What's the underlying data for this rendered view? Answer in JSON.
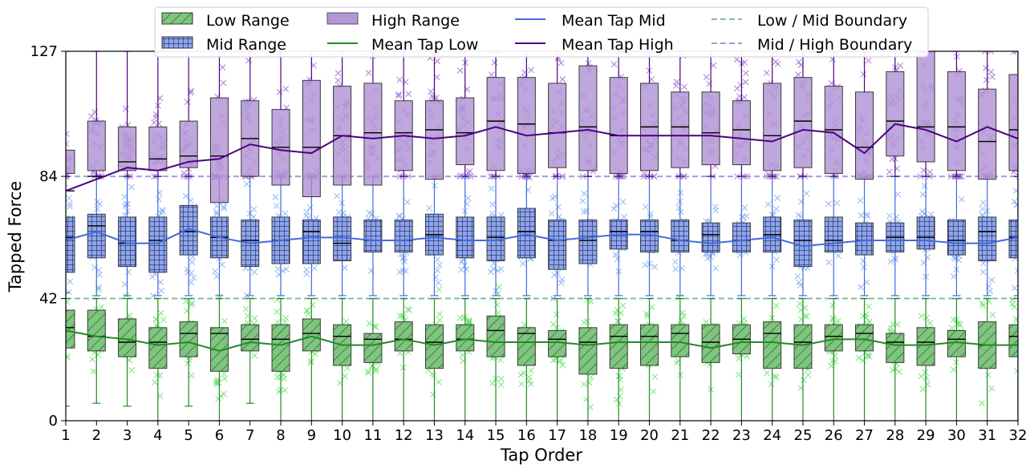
{
  "chart_data": {
    "type": "box",
    "xlabel": "Tap Order",
    "ylabel": "Tapped Force",
    "xlim": [
      1,
      32
    ],
    "ylim": [
      0,
      127
    ],
    "yticks": [
      0,
      42,
      84,
      127
    ],
    "x": [
      1,
      2,
      3,
      4,
      5,
      6,
      7,
      8,
      9,
      10,
      11,
      12,
      13,
      14,
      15,
      16,
      17,
      18,
      19,
      20,
      21,
      22,
      23,
      24,
      25,
      26,
      27,
      28,
      29,
      30,
      31,
      32
    ],
    "legend_position": "top-center",
    "legend": {
      "low_box": "Low Range",
      "mid_box": "Mid Range",
      "high_box": "High Range",
      "low_mean": "Mean Tap Low",
      "mid_mean": "Mean Tap Mid",
      "high_mean": "Mean Tap High",
      "low_mid_boundary": "Low / Mid Boundary",
      "mid_high_boundary": "Mid / High Boundary"
    },
    "boundaries": {
      "low_mid": 42,
      "mid_high": 84
    },
    "colors": {
      "low_fill": "#7fc47f",
      "low_line": "#228b22",
      "low_scatter": "#5fe05f",
      "mid_fill": "#8fa5e8",
      "mid_line": "#4169e1",
      "mid_scatter": "#7aa8ee",
      "mid_grid": "#1b2a6b",
      "high_fill": "#b497d6",
      "high_line": "#4b0082",
      "high_scatter": "#9a5fd0",
      "low_mid_boundary": "#7fbf9f",
      "mid_high_boundary": "#9f9fdf"
    },
    "series": [
      {
        "name": "Low Range",
        "q1": [
          25,
          24,
          22,
          18,
          22,
          17,
          24,
          17,
          24,
          19,
          20,
          24,
          18,
          24,
          22,
          19,
          22,
          16,
          18,
          19,
          22,
          20,
          23,
          18,
          18,
          24,
          24,
          20,
          19,
          22,
          18,
          22
        ],
        "q3": [
          38,
          38,
          35,
          32,
          34,
          32,
          33,
          33,
          35,
          33,
          30,
          34,
          33,
          33,
          36,
          32,
          31,
          32,
          33,
          33,
          33,
          33,
          33,
          34,
          33,
          33,
          33,
          30,
          32,
          31,
          34,
          33
        ],
        "med": [
          32,
          29,
          27,
          27,
          30,
          30,
          28,
          28,
          30,
          29,
          28,
          28,
          27,
          28,
          31,
          30,
          28,
          27,
          29,
          29,
          30,
          27,
          28,
          30,
          27,
          29,
          30,
          27,
          27,
          28,
          26,
          29
        ],
        "whislo": [
          5,
          6,
          5,
          0,
          5,
          0,
          6,
          0,
          0,
          0,
          0,
          0,
          0,
          0,
          0,
          0,
          0,
          0,
          0,
          0,
          0,
          0,
          0,
          0,
          0,
          0,
          0,
          0,
          0,
          0,
          0,
          0
        ],
        "whishi": [
          42,
          42,
          42,
          42,
          42,
          42,
          42,
          42,
          42,
          42,
          42,
          42,
          42,
          42,
          42,
          42,
          42,
          42,
          42,
          42,
          42,
          42,
          42,
          42,
          42,
          42,
          42,
          42,
          42,
          42,
          42,
          42
        ]
      },
      {
        "name": "Mid Range",
        "q1": [
          51,
          56,
          53,
          51,
          57,
          56,
          53,
          54,
          54,
          55,
          58,
          58,
          57,
          56,
          55,
          56,
          52,
          54,
          59,
          58,
          58,
          58,
          58,
          58,
          53,
          58,
          57,
          58,
          59,
          57,
          55,
          56
        ],
        "q3": [
          70,
          71,
          70,
          70,
          74,
          70,
          69,
          70,
          69,
          70,
          69,
          69,
          71,
          70,
          70,
          73,
          69,
          69,
          69,
          69,
          69,
          68,
          68,
          70,
          69,
          70,
          68,
          68,
          70,
          69,
          70,
          69
        ],
        "med": [
          63,
          67,
          61,
          62,
          65,
          63,
          62,
          62,
          65,
          61,
          62,
          62,
          64,
          62,
          63,
          65,
          62,
          62,
          65,
          65,
          62,
          64,
          62,
          64,
          62,
          62,
          62,
          63,
          63,
          62,
          65,
          63
        ],
        "whislo": [
          44,
          43,
          43,
          43,
          43,
          43,
          43,
          43,
          43,
          43,
          43,
          43,
          43,
          43,
          43,
          43,
          43,
          43,
          43,
          43,
          43,
          43,
          43,
          43,
          43,
          43,
          43,
          43,
          43,
          43,
          43,
          43
        ],
        "whishi": [
          84,
          84,
          84,
          84,
          84,
          84,
          84,
          84,
          84,
          84,
          84,
          84,
          84,
          84,
          84,
          84,
          84,
          84,
          84,
          84,
          84,
          84,
          84,
          84,
          84,
          84,
          84,
          84,
          84,
          84,
          84,
          84
        ]
      },
      {
        "name": "High Range",
        "q1": [
          85,
          86,
          86,
          86,
          87,
          75,
          84,
          81,
          77,
          81,
          81,
          86,
          83,
          88,
          86,
          85,
          87,
          86,
          85,
          86,
          87,
          88,
          88,
          86,
          87,
          85,
          83,
          91,
          89,
          86,
          83,
          86
        ],
        "q3": [
          93,
          103,
          101,
          101,
          103,
          111,
          110,
          107,
          117,
          115,
          116,
          110,
          110,
          111,
          118,
          118,
          116,
          122,
          118,
          116,
          113,
          113,
          110,
          116,
          118,
          115,
          113,
          120,
          127,
          120,
          114,
          119
        ],
        "med": [
          79,
          84,
          89,
          90,
          91,
          91,
          97,
          94,
          94,
          98,
          99,
          99,
          100,
          99,
          103,
          102,
          99,
          101,
          98,
          101,
          101,
          99,
          100,
          98,
          103,
          100,
          94,
          103,
          101,
          101,
          96,
          100
        ],
        "whislo": [
          84,
          84,
          84,
          84,
          84,
          84,
          84,
          84,
          84,
          84,
          84,
          84,
          84,
          84,
          84,
          84,
          84,
          84,
          84,
          84,
          84,
          84,
          84,
          84,
          84,
          84,
          84,
          84,
          84,
          84,
          84,
          84
        ],
        "whishi": [
          127,
          127,
          127,
          127,
          127,
          127,
          127,
          127,
          127,
          127,
          127,
          127,
          127,
          127,
          127,
          127,
          127,
          127,
          127,
          127,
          127,
          127,
          127,
          127,
          127,
          127,
          127,
          127,
          127,
          127,
          127,
          127
        ]
      }
    ],
    "means": {
      "Mean Tap Low": [
        31,
        29,
        28,
        26,
        27,
        24,
        27,
        26,
        29,
        26,
        26,
        28,
        26,
        28,
        27,
        27,
        27,
        26,
        27,
        27,
        27,
        25,
        27,
        27,
        26,
        28,
        28,
        26,
        26,
        27,
        26,
        26
      ],
      "Mean Tap Mid": [
        62,
        65,
        61,
        61,
        66,
        63,
        61,
        62,
        63,
        63,
        62,
        62,
        63,
        62,
        62,
        64,
        62,
        63,
        64,
        64,
        62,
        61,
        62,
        63,
        60,
        61,
        62,
        62,
        62,
        61,
        61,
        63
      ],
      "Mean Tap High": [
        79,
        83,
        87,
        86,
        89,
        90,
        95,
        93,
        92,
        98,
        97,
        98,
        97,
        98,
        101,
        98,
        99,
        100,
        98,
        98,
        98,
        98,
        97,
        96,
        100,
        99,
        92,
        102,
        100,
        96,
        101,
        97
      ]
    }
  }
}
